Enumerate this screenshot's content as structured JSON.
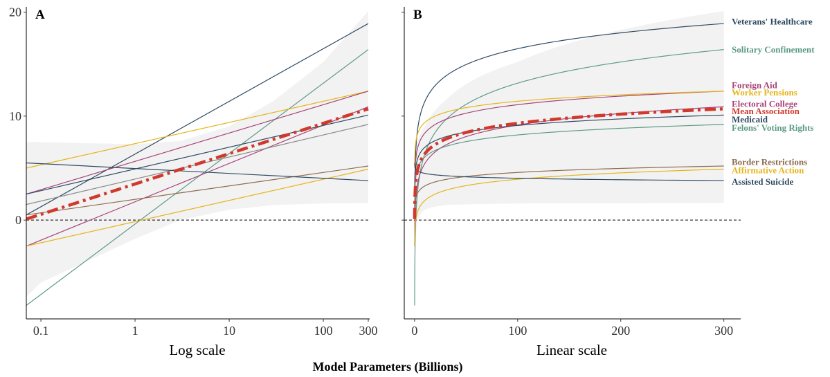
{
  "figure_title": "Model Parameters (Billions)",
  "colors": {
    "navy": "#2E4A62",
    "teal": "#5C9A86",
    "gold": "#E6B419",
    "magenta": "#A8437A",
    "brown": "#8E6B4E",
    "gray": "#8A8A8A",
    "mean": "#D0392B",
    "ribbon": "#F2F2F2"
  },
  "chart_data": [
    {
      "type": "line",
      "panel_label": "A",
      "xlabel": "Log scale",
      "x_scale": "log10",
      "xlim": [
        0.07,
        300
      ],
      "ylim": [
        -9.5,
        20.5
      ],
      "x_ticks": [
        0.1,
        1,
        10,
        100,
        300
      ],
      "x_tick_labels": [
        "0.1",
        "1",
        "10",
        "100",
        "300"
      ],
      "y_ticks": [
        0,
        10,
        20
      ],
      "y_tick_labels": [
        "0",
        "10",
        "20"
      ],
      "reference_line_y": 0,
      "ribbon": {
        "x": [
          0.07,
          0.1,
          0.3,
          1,
          3,
          10,
          30,
          100,
          300
        ],
        "lower": [
          -7.4,
          -6.0,
          -4.0,
          -1.8,
          0.0,
          1.0,
          1.45,
          1.6,
          1.65
        ],
        "upper": [
          7.5,
          7.5,
          7.4,
          7.3,
          7.6,
          9.0,
          11.5,
          15.2,
          20.1
        ]
      },
      "series": [
        {
          "name": "Veterans' Healthcare",
          "color": "navy",
          "x": [
            0.07,
            300
          ],
          "y": [
            0.5,
            18.9
          ]
        },
        {
          "name": "Solitary Confinement",
          "color": "teal",
          "x": [
            0.07,
            300
          ],
          "y": [
            -8.2,
            16.4
          ]
        },
        {
          "name": "Worker Pensions",
          "color": "gold",
          "x": [
            0.07,
            300
          ],
          "y": [
            5.0,
            12.4
          ]
        },
        {
          "name": "Foreign Aid",
          "color": "magenta",
          "x": [
            0.07,
            300
          ],
          "y": [
            2.5,
            12.4
          ]
        },
        {
          "name": "Electoral College",
          "color": "magenta",
          "x": [
            0.07,
            300
          ],
          "y": [
            -2.5,
            10.9
          ]
        },
        {
          "name": "Medicaid",
          "color": "navy",
          "x": [
            0.07,
            300
          ],
          "y": [
            2.5,
            10.1
          ]
        },
        {
          "name": "Felons' Voting Rights",
          "color": "gray",
          "x": [
            0.07,
            300
          ],
          "y": [
            1.5,
            9.2
          ]
        },
        {
          "name": "Border Restrictions",
          "color": "brown",
          "x": [
            0.07,
            300
          ],
          "y": [
            0.5,
            5.2
          ]
        },
        {
          "name": "Affirmative Action",
          "color": "gold",
          "x": [
            0.07,
            300
          ],
          "y": [
            -2.5,
            4.9
          ]
        },
        {
          "name": "Assisted Suicide",
          "color": "navy",
          "x": [
            0.07,
            300
          ],
          "y": [
            5.5,
            3.8
          ]
        },
        {
          "name": "Mean Association",
          "color": "mean",
          "dashed": true,
          "x": [
            0.07,
            300
          ],
          "y": [
            0.1,
            10.7
          ]
        }
      ]
    },
    {
      "type": "line",
      "panel_label": "B",
      "xlabel": "Linear scale",
      "x_scale": "linear",
      "xlim": [
        -10,
        315
      ],
      "ylim": [
        -9.5,
        20.5
      ],
      "x_ticks": [
        0,
        100,
        200,
        300
      ],
      "x_tick_labels": [
        "0",
        "100",
        "200",
        "300"
      ],
      "y_ticks": [
        0,
        10,
        20
      ],
      "reference_line_y": 0,
      "ribbon": {
        "x": [
          0.07,
          0.1,
          0.3,
          1,
          3,
          10,
          30,
          100,
          300
        ],
        "lower": [
          -7.4,
          -6.0,
          -4.0,
          -1.8,
          0.0,
          1.0,
          1.45,
          1.6,
          1.65
        ],
        "upper": [
          7.5,
          7.5,
          7.4,
          7.3,
          7.6,
          9.0,
          11.5,
          15.2,
          20.1
        ]
      },
      "series": [
        {
          "name": "Veterans' Healthcare",
          "label": "Veterans' Healthcare",
          "label_y": 19.1,
          "color": "navy",
          "x": [
            0.07,
            300
          ],
          "y": [
            0.5,
            18.9
          ]
        },
        {
          "name": "Solitary Confinement",
          "label": "Solitary Confinement",
          "label_y": 16.4,
          "color": "teal",
          "x": [
            0.07,
            300
          ],
          "y": [
            -8.2,
            16.4
          ]
        },
        {
          "name": "Foreign Aid",
          "label": "Foreign Aid",
          "label_y": 13.0,
          "color": "magenta",
          "x": [
            0.07,
            300
          ],
          "y": [
            2.5,
            12.4
          ]
        },
        {
          "name": "Worker Pensions",
          "label": "Worker Pensions",
          "label_y": 12.3,
          "color": "gold",
          "x": [
            0.07,
            300
          ],
          "y": [
            5.0,
            12.4
          ]
        },
        {
          "name": "Electoral College",
          "label": "Electoral College",
          "label_y": 11.2,
          "color": "magenta",
          "x": [
            0.07,
            300
          ],
          "y": [
            -2.5,
            10.9
          ]
        },
        {
          "name": "Mean Association",
          "label": "Mean Association",
          "label_y": 10.5,
          "color": "mean",
          "dashed": true,
          "x": [
            0.07,
            300
          ],
          "y": [
            0.1,
            10.7
          ]
        },
        {
          "name": "Medicaid",
          "label": "Medicaid",
          "label_y": 9.7,
          "color": "navy",
          "x": [
            0.07,
            300
          ],
          "y": [
            2.5,
            10.1
          ]
        },
        {
          "name": "Felons' Voting Rights",
          "label": "Felons' Voting Rights",
          "label_y": 8.9,
          "color": "teal",
          "x": [
            0.07,
            300
          ],
          "y": [
            1.5,
            9.2
          ]
        },
        {
          "name": "Border Restrictions",
          "label": "Border Restrictions",
          "label_y": 5.6,
          "color": "brown",
          "x": [
            0.07,
            300
          ],
          "y": [
            0.5,
            5.2
          ]
        },
        {
          "name": "Affirmative Action",
          "label": "Affirmative Action",
          "label_y": 4.8,
          "color": "gold",
          "x": [
            0.07,
            300
          ],
          "y": [
            -2.5,
            4.9
          ]
        },
        {
          "name": "Assisted Suicide",
          "label": "Assisted Suicide",
          "label_y": 3.7,
          "color": "navy",
          "x": [
            0.07,
            300
          ],
          "y": [
            5.5,
            3.8
          ]
        }
      ]
    }
  ]
}
